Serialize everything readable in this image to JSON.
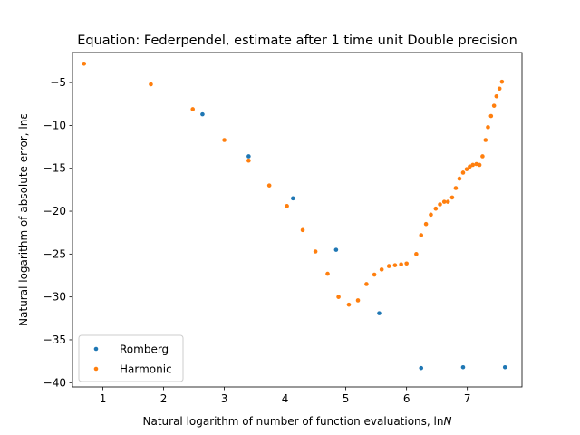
{
  "chart_data": {
    "type": "scatter",
    "title": "Equation: Federpendel, estimate after 1 time unit Double precision",
    "xlabel": "Natural logarithm of number of function evaluations, ln",
    "xlabel_var": "N",
    "ylabel": "Natural logarithm of absolute error, lnε",
    "xlim": [
      0.5,
      7.9
    ],
    "ylim": [
      -40.5,
      -1.5
    ],
    "x_ticks": [
      1,
      2,
      3,
      4,
      5,
      6,
      7
    ],
    "x_tick_labels": [
      "1",
      "2",
      "3",
      "4",
      "5",
      "6",
      "7"
    ],
    "y_ticks": [
      -5,
      -10,
      -15,
      -20,
      -25,
      -30,
      -35,
      -40
    ],
    "y_tick_labels": [
      "−5",
      "−10",
      "−15",
      "−20",
      "−25",
      "−30",
      "−35",
      "−40"
    ],
    "grid": false,
    "legend_position": "lower-left",
    "series": [
      {
        "name": "Romberg",
        "color": "#1f77b4",
        "points": [
          [
            2.64,
            -8.7
          ],
          [
            3.4,
            -13.6
          ],
          [
            4.13,
            -18.5
          ],
          [
            4.84,
            -24.5
          ],
          [
            5.55,
            -31.9
          ],
          [
            6.24,
            -38.3
          ],
          [
            6.93,
            -38.2
          ],
          [
            7.62,
            -38.2
          ]
        ]
      },
      {
        "name": "Harmonic",
        "color": "#ff7f0e",
        "points": [
          [
            0.69,
            -2.8
          ],
          [
            1.79,
            -5.2
          ],
          [
            2.48,
            -8.1
          ],
          [
            3.0,
            -11.7
          ],
          [
            3.4,
            -14.1
          ],
          [
            3.74,
            -17.0
          ],
          [
            4.03,
            -19.4
          ],
          [
            4.29,
            -22.2
          ],
          [
            4.5,
            -24.7
          ],
          [
            4.7,
            -27.3
          ],
          [
            4.88,
            -30.0
          ],
          [
            5.05,
            -30.9
          ],
          [
            5.2,
            -30.4
          ],
          [
            5.34,
            -28.5
          ],
          [
            5.47,
            -27.4
          ],
          [
            5.59,
            -26.8
          ],
          [
            5.71,
            -26.4
          ],
          [
            5.81,
            -26.3
          ],
          [
            5.91,
            -26.2
          ],
          [
            6.0,
            -26.1
          ],
          [
            6.16,
            -25.0
          ],
          [
            6.24,
            -22.8
          ],
          [
            6.32,
            -21.5
          ],
          [
            6.4,
            -20.4
          ],
          [
            6.48,
            -19.7
          ],
          [
            6.55,
            -19.2
          ],
          [
            6.62,
            -18.9
          ],
          [
            6.68,
            -18.9
          ],
          [
            6.75,
            -18.4
          ],
          [
            6.81,
            -17.3
          ],
          [
            6.87,
            -16.2
          ],
          [
            6.93,
            -15.5
          ],
          [
            6.99,
            -15.1
          ],
          [
            7.04,
            -14.8
          ],
          [
            7.09,
            -14.6
          ],
          [
            7.15,
            -14.5
          ],
          [
            7.2,
            -14.6
          ],
          [
            7.25,
            -13.6
          ],
          [
            7.3,
            -11.7
          ],
          [
            7.34,
            -10.2
          ],
          [
            7.39,
            -8.9
          ],
          [
            7.44,
            -7.7
          ],
          [
            7.48,
            -6.6
          ],
          [
            7.53,
            -5.7
          ],
          [
            7.57,
            -4.9
          ]
        ]
      }
    ]
  }
}
